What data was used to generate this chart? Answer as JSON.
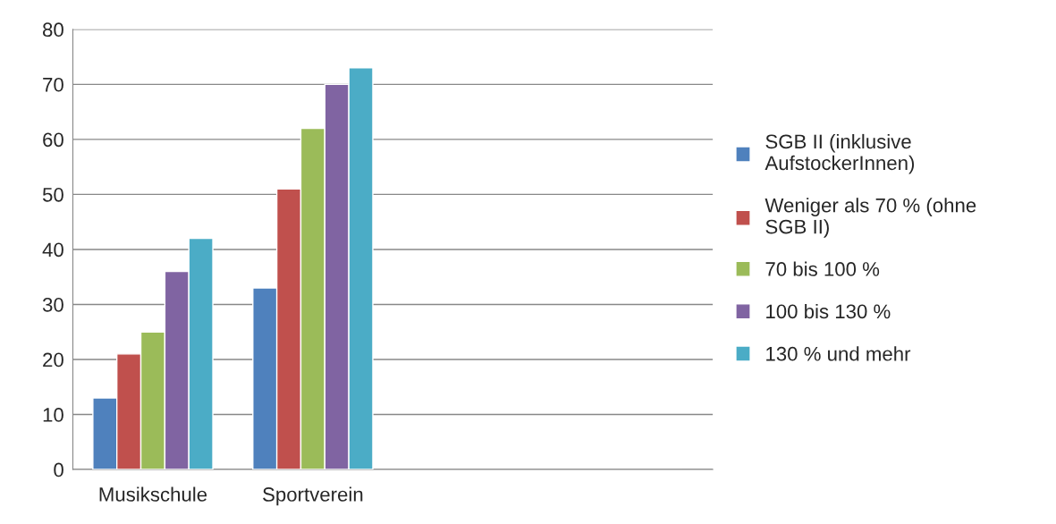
{
  "chart_data": {
    "type": "bar",
    "categories": [
      "Musikschule",
      "Sportverein",
      null,
      null
    ],
    "series": [
      {
        "name": "SGB II (inklusive\nAufstockerInnen)",
        "color": "#4f81bd",
        "values": [
          13,
          33,
          null,
          null
        ]
      },
      {
        "name": "Weniger als 70 % (ohne\nSGB II)",
        "color": "#c0504d",
        "values": [
          21,
          51,
          null,
          null
        ]
      },
      {
        "name": "70 bis 100 %",
        "color": "#9bbb59",
        "values": [
          25,
          62,
          null,
          null
        ]
      },
      {
        "name": "100 bis 130 %",
        "color": "#8064a2",
        "values": [
          36,
          70,
          null,
          null
        ]
      },
      {
        "name": "130 % und mehr",
        "color": "#4bacc6",
        "values": [
          42,
          73,
          null,
          null
        ]
      }
    ],
    "ylim": [
      0,
      80
    ],
    "yticks": [
      0,
      10,
      20,
      30,
      40,
      50,
      60,
      70,
      80
    ],
    "grid": "y",
    "legend": "right"
  }
}
